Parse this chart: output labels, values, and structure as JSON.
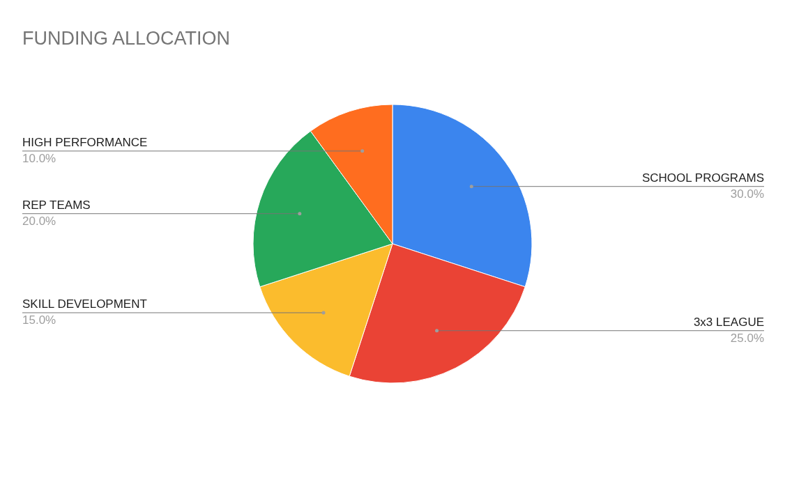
{
  "chart_data": {
    "type": "pie",
    "title": "FUNDING ALLOCATION",
    "categories": [
      "SCHOOL PROGRAMS",
      "3x3 LEAGUE",
      "SKILL DEVELOPMENT",
      "REP TEAMS",
      "HIGH PERFORMANCE"
    ],
    "values": [
      30,
      25,
      15,
      20,
      10
    ],
    "colors": [
      "#3b85ee",
      "#ea4335",
      "#fbbc2d",
      "#27a85a",
      "#ff6d1f"
    ],
    "value_labels": [
      "30.0%",
      "25.0%",
      "15.0%",
      "20.0%",
      "10.0%"
    ]
  }
}
